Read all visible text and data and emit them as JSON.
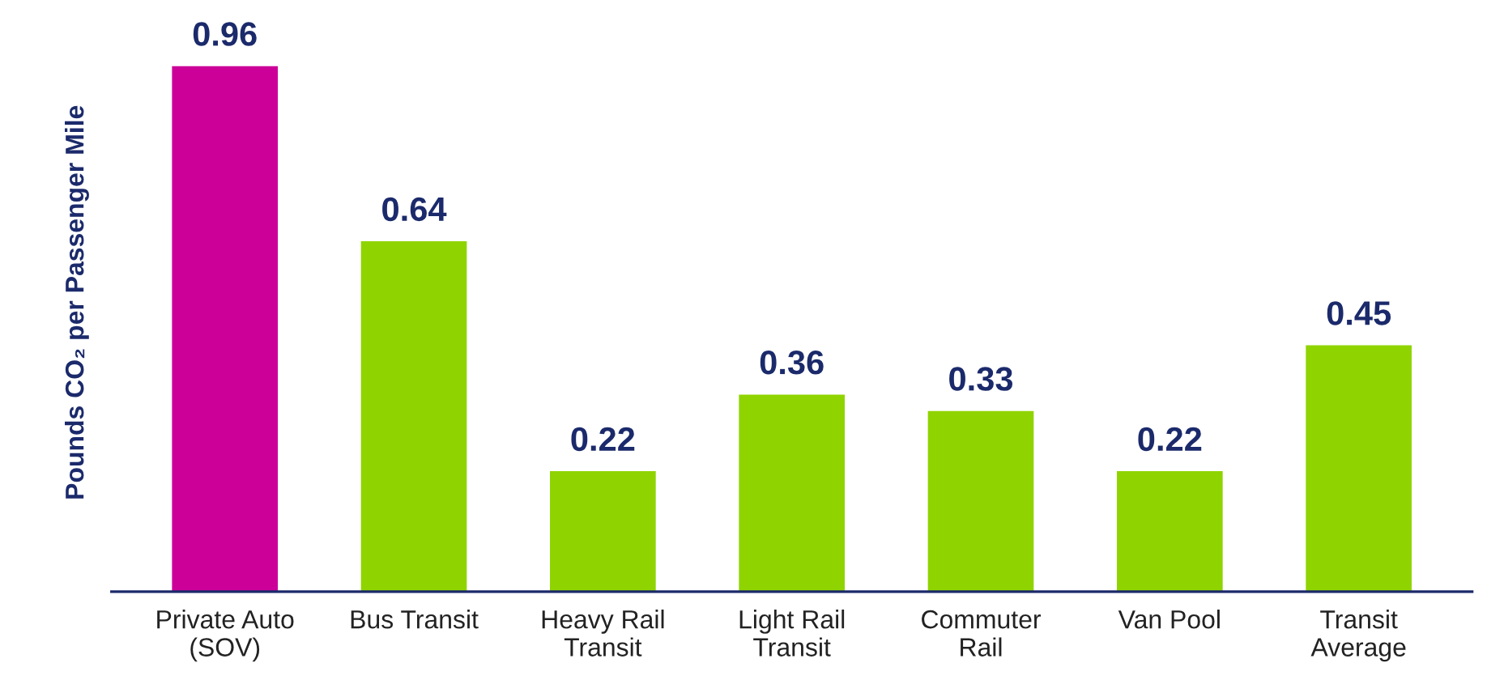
{
  "chart_data": {
    "type": "bar",
    "ylabel": "Pounds CO₂ per Passenger Mile",
    "categories": [
      "Private Auto\n(SOV)",
      "Bus Transit",
      "Heavy Rail\nTransit",
      "Light Rail\nTransit",
      "Commuter\nRail",
      "Van Pool",
      "Transit\nAverage"
    ],
    "values": [
      0.96,
      0.64,
      0.22,
      0.36,
      0.33,
      0.22,
      0.45
    ],
    "colors": [
      "#cc0099",
      "#8fd400",
      "#8fd400",
      "#8fd400",
      "#8fd400",
      "#8fd400",
      "#8fd400"
    ],
    "data_labels": true,
    "tick_labels": "x",
    "grid": false,
    "legend": false
  }
}
